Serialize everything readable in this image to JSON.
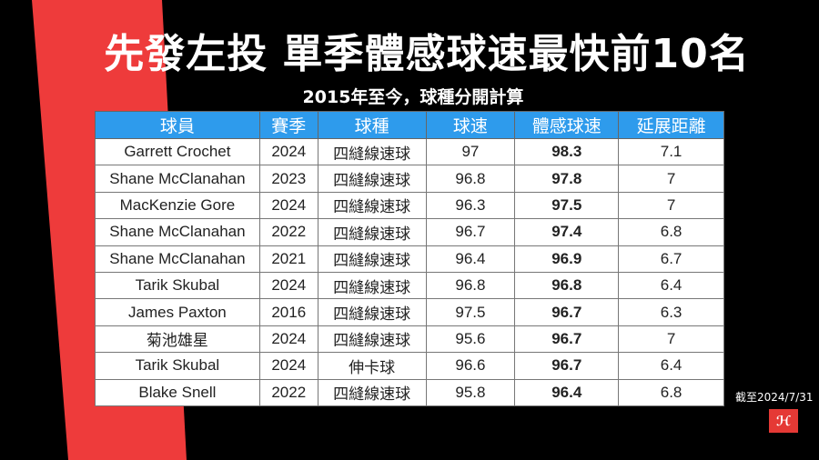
{
  "title": "先發左投 單季體感球速最快前10名",
  "subtitle": "2015年至今，球種分開計算",
  "columns": [
    "球員",
    "賽季",
    "球種",
    "球速",
    "體感球速",
    "延展距離"
  ],
  "rows": [
    [
      "Garrett Crochet",
      "2024",
      "四縫線速球",
      "97",
      "98.3",
      "7.1"
    ],
    [
      "Shane McClanahan",
      "2023",
      "四縫線速球",
      "96.8",
      "97.8",
      "7"
    ],
    [
      "MacKenzie Gore",
      "2024",
      "四縫線速球",
      "96.3",
      "97.5",
      "7"
    ],
    [
      "Shane McClanahan",
      "2022",
      "四縫線速球",
      "96.7",
      "97.4",
      "6.8"
    ],
    [
      "Shane McClanahan",
      "2021",
      "四縫線速球",
      "96.4",
      "96.9",
      "6.7"
    ],
    [
      "Tarik Skubal",
      "2024",
      "四縫線速球",
      "96.8",
      "96.8",
      "6.4"
    ],
    [
      "James Paxton",
      "2016",
      "四縫線速球",
      "97.5",
      "96.7",
      "6.3"
    ],
    [
      "菊池雄星",
      "2024",
      "四縫線速球",
      "95.6",
      "96.7",
      "7"
    ],
    [
      "Tarik Skubal",
      "2024",
      "伸卡球",
      "96.6",
      "96.7",
      "6.4"
    ],
    [
      "Blake Snell",
      "2022",
      "四縫線速球",
      "95.8",
      "96.4",
      "6.8"
    ]
  ],
  "as_of": "截至2024/7/31",
  "logo_text": "Hi",
  "colors": {
    "accent": "#e53935",
    "header": "#2e9bec"
  }
}
